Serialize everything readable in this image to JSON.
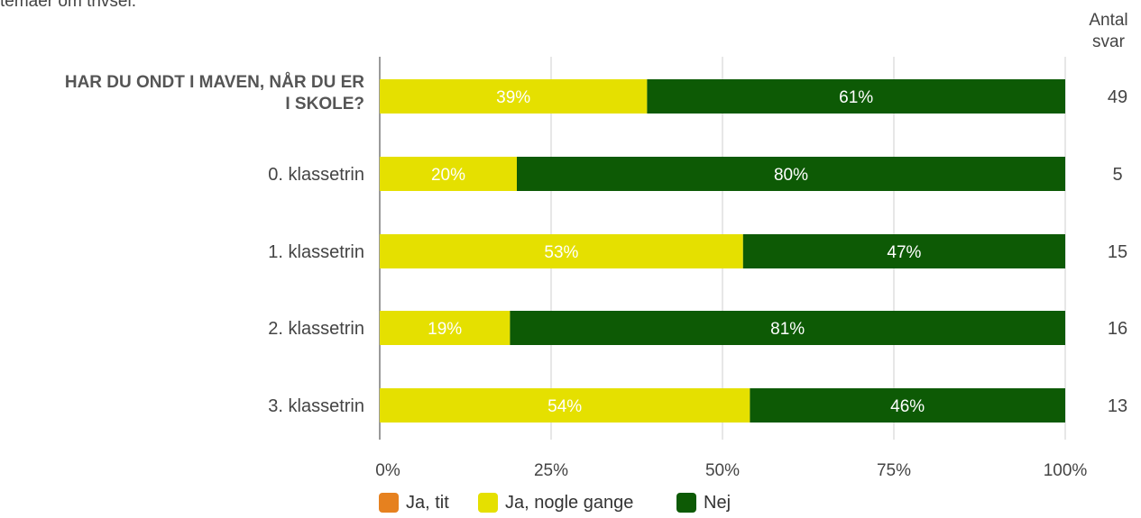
{
  "header_fragment": "temaer om trivsel.",
  "chart_data": {
    "type": "bar",
    "orientation": "horizontal",
    "stacked": true,
    "percent": true,
    "count_header": "Antal svar",
    "categories": [
      "HAR DU ONDT I MAVEN, NÅR DU ER I SKOLE?",
      "0. klassetrin",
      "1. klassetrin",
      "2. klassetrin",
      "3. klassetrin"
    ],
    "category_bold": [
      true,
      false,
      false,
      false,
      false
    ],
    "counts": [
      49,
      5,
      15,
      16,
      13
    ],
    "series": [
      {
        "name": "Ja, tit",
        "color": "#e6811f",
        "values": [
          0,
          0,
          0,
          0,
          0
        ]
      },
      {
        "name": "Ja, nogle gange",
        "color": "#e5e000",
        "values": [
          39,
          20,
          53,
          19,
          54
        ]
      },
      {
        "name": "Nej",
        "color": "#0d5a05",
        "values": [
          61,
          80,
          47,
          81,
          46
        ]
      }
    ],
    "xlim": [
      0,
      100
    ],
    "xticks": [
      "0%",
      "25%",
      "50%",
      "75%",
      "100%"
    ],
    "grid": true,
    "legend": "bottom"
  }
}
